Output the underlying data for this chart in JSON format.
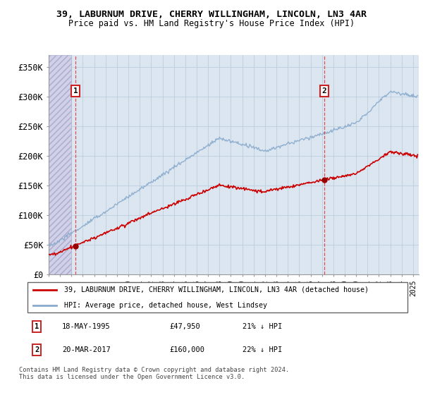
{
  "title1": "39, LABURNUM DRIVE, CHERRY WILLINGHAM, LINCOLN, LN3 4AR",
  "title2": "Price paid vs. HM Land Registry's House Price Index (HPI)",
  "ylabel_ticks": [
    "£0",
    "£50K",
    "£100K",
    "£150K",
    "£200K",
    "£250K",
    "£300K",
    "£350K"
  ],
  "ytick_values": [
    0,
    50000,
    100000,
    150000,
    200000,
    250000,
    300000,
    350000
  ],
  "ylim": [
    0,
    370000
  ],
  "xlim_start": 1993.0,
  "xlim_end": 2025.5,
  "sale1_date": 1995.37,
  "sale1_price": 47950,
  "sale1_label": "1",
  "sale2_date": 2017.22,
  "sale2_price": 160000,
  "sale2_label": "2",
  "legend_line1": "39, LABURNUM DRIVE, CHERRY WILLINGHAM, LINCOLN, LN3 4AR (detached house)",
  "legend_line2": "HPI: Average price, detached house, West Lindsey",
  "footer": "Contains HM Land Registry data © Crown copyright and database right 2024.\nThis data is licensed under the Open Government Licence v3.0.",
  "hatch_color": "#aaaacc",
  "plot_bg": "#dce6f1",
  "hatch_bg": "#d0d0e8",
  "grid_color": "#b8c8d8",
  "red_line_color": "#cc0000",
  "blue_line_color": "#88aacc",
  "red_dot_color": "#990000",
  "vline_color": "#dd3333",
  "box_edge_color": "#cc2222",
  "hatch_end": 1995.0
}
